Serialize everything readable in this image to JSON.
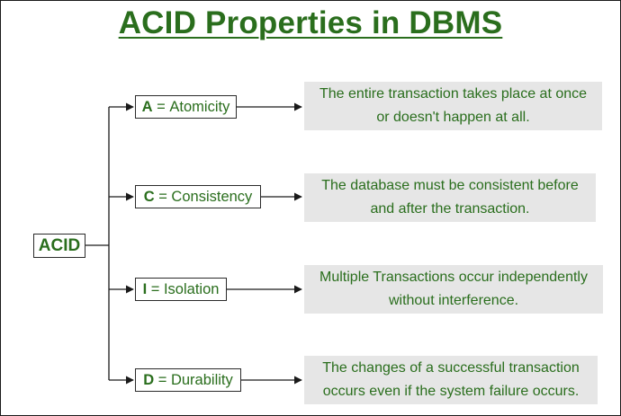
{
  "title": "ACID Properties in DBMS",
  "root": "ACID",
  "properties": [
    {
      "letter": "A",
      "name": "Atomicity",
      "desc_line1": "The entire transaction takes place at once",
      "desc_line2": "or doesn't happen at all."
    },
    {
      "letter": "C",
      "name": "Consistency",
      "desc_line1": "The database must be consistent before",
      "desc_line2": "and after the transaction."
    },
    {
      "letter": "I",
      "name": "Isolation",
      "desc_line1": "Multiple Transactions occur independently",
      "desc_line2": "without interference."
    },
    {
      "letter": "D",
      "name": "Durability",
      "desc_line1": "The changes of a successful transaction",
      "desc_line2": "occurs even if the system failure occurs."
    }
  ],
  "colors": {
    "text_green": "#2a6e1d",
    "desc_background": "#e6e6e6",
    "line": "#1a1a1a"
  }
}
